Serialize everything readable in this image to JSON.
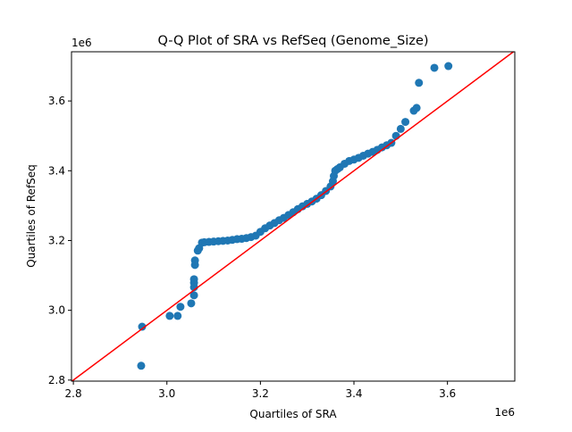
{
  "chart_data": {
    "type": "scatter",
    "title": "Q-Q Plot of SRA vs RefSeq (Genome_Size)",
    "xlabel": "Quartiles of SRA",
    "ylabel": "Quartiles of RefSeq",
    "x_offset_label": "1e6",
    "y_offset_label": "1e6",
    "xlim": [
      2.796,
      3.744
    ],
    "ylim": [
      2.797,
      3.741
    ],
    "xticks": [
      "2.8",
      "3.0",
      "3.2",
      "3.4",
      "3.6"
    ],
    "yticks": [
      "2.8",
      "3.0",
      "3.2",
      "3.4",
      "3.6"
    ],
    "grid": false,
    "marker_color": "#1f77b4",
    "reference_line": {
      "type": "y=x",
      "color": "#ff0000"
    },
    "x": [
      2.945,
      2.947,
      3.006,
      3.023,
      3.029,
      3.052,
      3.058,
      3.058,
      3.058,
      3.058,
      3.06,
      3.06,
      3.066,
      3.069,
      3.075,
      3.08,
      3.09,
      3.1,
      3.11,
      3.12,
      3.13,
      3.14,
      3.15,
      3.16,
      3.17,
      3.18,
      3.19,
      3.2,
      3.21,
      3.22,
      3.23,
      3.24,
      3.25,
      3.26,
      3.27,
      3.28,
      3.29,
      3.3,
      3.31,
      3.32,
      3.33,
      3.34,
      3.35,
      3.355,
      3.357,
      3.36,
      3.365,
      3.37,
      3.38,
      3.39,
      3.4,
      3.41,
      3.42,
      3.43,
      3.44,
      3.45,
      3.46,
      3.47,
      3.48,
      3.49,
      3.5,
      3.51,
      3.528,
      3.534,
      3.539,
      3.572,
      3.602
    ],
    "y": [
      2.841,
      2.953,
      2.984,
      2.984,
      3.01,
      3.02,
      3.043,
      3.066,
      3.079,
      3.089,
      3.13,
      3.143,
      3.171,
      3.178,
      3.194,
      3.195,
      3.196,
      3.197,
      3.198,
      3.199,
      3.2,
      3.202,
      3.204,
      3.205,
      3.207,
      3.21,
      3.214,
      3.225,
      3.235,
      3.243,
      3.25,
      3.258,
      3.265,
      3.273,
      3.281,
      3.29,
      3.298,
      3.305,
      3.312,
      3.32,
      3.33,
      3.342,
      3.355,
      3.37,
      3.385,
      3.4,
      3.405,
      3.41,
      3.42,
      3.428,
      3.432,
      3.437,
      3.443,
      3.449,
      3.454,
      3.46,
      3.467,
      3.473,
      3.48,
      3.5,
      3.52,
      3.54,
      3.572,
      3.58,
      3.652,
      3.695,
      3.7
    ]
  }
}
